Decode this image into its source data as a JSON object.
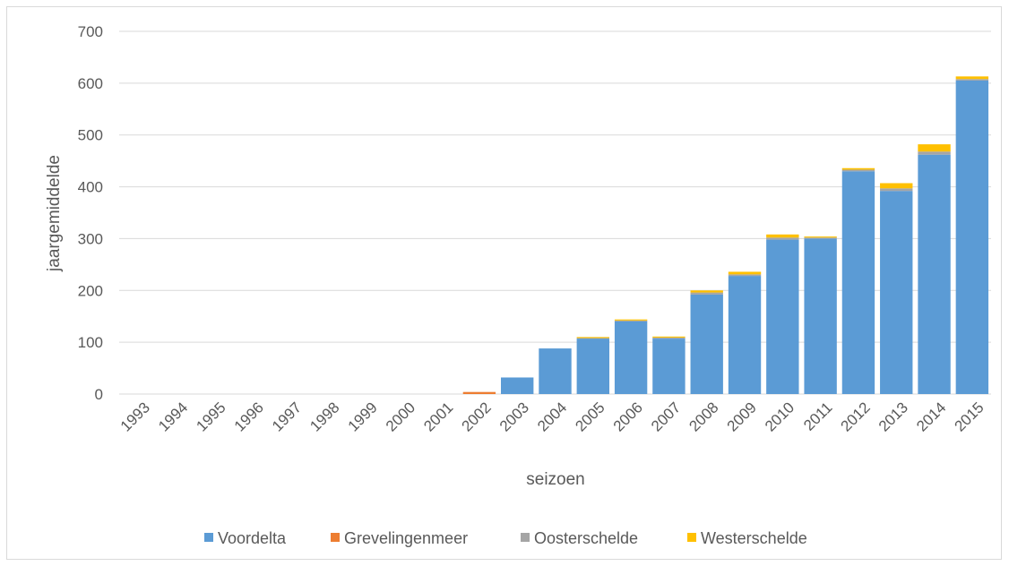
{
  "chart_data": {
    "type": "bar",
    "stacked": true,
    "title": "",
    "xlabel": "seizoen",
    "ylabel": "jaargemiddelde",
    "ylim": [
      0,
      700
    ],
    "yticks": [
      0,
      100,
      200,
      300,
      400,
      500,
      600,
      700
    ],
    "grid": true,
    "legend_position": "bottom",
    "categories": [
      "1993",
      "1994",
      "1995",
      "1996",
      "1997",
      "1998",
      "1999",
      "2000",
      "2001",
      "2002",
      "2003",
      "2004",
      "2005",
      "2006",
      "2007",
      "2008",
      "2009",
      "2010",
      "2011",
      "2012",
      "2013",
      "2014",
      "2015"
    ],
    "series": [
      {
        "name": "Voordelta",
        "color": "#5b9bd5",
        "values": [
          0,
          0,
          0,
          0,
          0,
          0,
          0,
          0,
          0,
          0,
          32,
          88,
          107,
          140,
          107,
          192,
          228,
          298,
          300,
          430,
          392,
          462,
          605
        ]
      },
      {
        "name": "Grevelingenmeer",
        "color": "#ed7d31",
        "values": [
          0,
          0,
          0,
          0,
          0,
          0,
          0,
          0,
          0,
          4,
          0,
          0,
          0,
          0,
          0,
          0,
          0,
          0,
          0,
          0,
          0,
          0,
          0
        ]
      },
      {
        "name": "Oosterschelde",
        "color": "#a5a5a5",
        "values": [
          0,
          0,
          0,
          0,
          0,
          0,
          0,
          0,
          0,
          0,
          0,
          0,
          1,
          2,
          2,
          4,
          3,
          4,
          2,
          3,
          5,
          6,
          3
        ]
      },
      {
        "name": "Westerschelde",
        "color": "#ffc000",
        "values": [
          0,
          0,
          0,
          0,
          0,
          0,
          0,
          0,
          0,
          0,
          0,
          0,
          2,
          2,
          2,
          4,
          5,
          6,
          2,
          3,
          10,
          14,
          5
        ]
      }
    ]
  }
}
